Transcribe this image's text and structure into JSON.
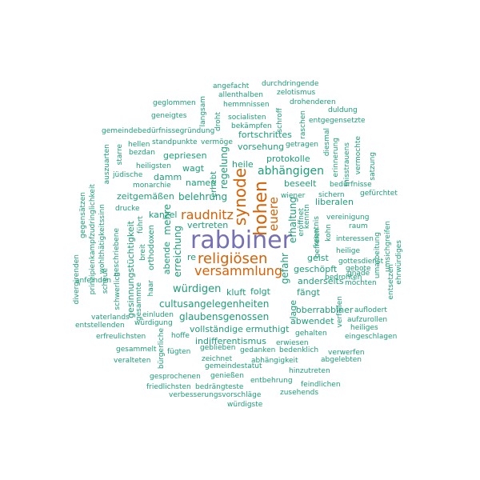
{
  "palette": {
    "purple": "#7570b3",
    "orange": "#d95f02",
    "teal": "#1b9e77"
  },
  "words": [
    {
      "text": "rabbiner",
      "color": "#7570b3",
      "size": "big"
    },
    {
      "text": "synode",
      "color": "#d95f02",
      "size": "l"
    },
    {
      "text": "hohen",
      "color": "#d95f02",
      "size": "l"
    },
    {
      "text": "religiösen",
      "color": "#d95f02",
      "size": "l"
    },
    {
      "text": "versammlung",
      "color": "#d95f02",
      "size": "m"
    },
    {
      "text": "raudnitz",
      "color": "#d95f02",
      "size": "m"
    },
    {
      "text": "euere",
      "color": "#d95f02",
      "size": "m"
    },
    {
      "text": "abhängigen",
      "color": "#1b9e77"
    },
    {
      "text": "belehrung",
      "color": "#1b9e77"
    },
    {
      "text": "würdigen",
      "color": "#1b9e77"
    },
    {
      "text": "cultusangelegenheiten",
      "color": "#1b9e77"
    },
    {
      "text": "glaubensgenossen",
      "color": "#1b9e77"
    },
    {
      "text": "erreichung",
      "color": "#1b9e77"
    },
    {
      "text": "mehre",
      "color": "#1b9e77"
    },
    {
      "text": "regelung",
      "color": "#1b9e77"
    },
    {
      "text": "gefahr",
      "color": "#1b9e77"
    },
    {
      "text": "erhaltung",
      "color": "#1b9e77"
    },
    {
      "text": "fortschrittes",
      "color": "#1b9e77"
    },
    {
      "text": "vorsehung",
      "color": "#1b9e77"
    },
    {
      "text": "protokolle",
      "color": "#1b9e77"
    },
    {
      "text": "heile",
      "color": "#1b9e77"
    },
    {
      "text": "gepriesen",
      "color": "#1b9e77"
    },
    {
      "text": "wagt",
      "color": "#1b9e77"
    },
    {
      "text": "damm",
      "color": "#1b9e77"
    },
    {
      "text": "namen",
      "color": "#1b9e77"
    },
    {
      "text": "zeitgemäßen",
      "color": "#1b9e77"
    },
    {
      "text": "beseelt",
      "color": "#1b9e77"
    },
    {
      "text": "liberalen",
      "color": "#1b9e77"
    },
    {
      "text": "kanzel",
      "color": "#1b9e77"
    },
    {
      "text": "vertreten",
      "color": "#1b9e77"
    },
    {
      "text": "geist",
      "color": "#1b9e77"
    },
    {
      "text": "anderseits",
      "color": "#1b9e77"
    },
    {
      "text": "fängt",
      "color": "#1b9e77"
    },
    {
      "text": "geschöpft",
      "color": "#1b9e77"
    },
    {
      "text": "kluft",
      "color": "#1b9e77"
    },
    {
      "text": "folgt",
      "color": "#1b9e77"
    },
    {
      "text": "abwendet",
      "color": "#1b9e77"
    },
    {
      "text": "oberrabbiner",
      "color": "#1b9e77"
    },
    {
      "text": "vollständige",
      "color": "#1b9e77"
    },
    {
      "text": "ermuthigt",
      "color": "#1b9e77"
    },
    {
      "text": "indifferentismus",
      "color": "#1b9e77"
    },
    {
      "text": "lage",
      "color": "#1b9e77"
    },
    {
      "text": "erhebt",
      "color": "#1b9e77"
    },
    {
      "text": "orthodoxen",
      "color": "#1b9e77"
    },
    {
      "text": "abende",
      "color": "#1b9e77"
    },
    {
      "text": "gesinnungstüchtigkeit",
      "color": "#1b9e77"
    },
    {
      "text": "re",
      "color": "#1b9e77"
    },
    {
      "text": "angefacht",
      "color": "#1b9e77"
    },
    {
      "text": "durchdringende",
      "color": "#1b9e77"
    },
    {
      "text": "zelotismus",
      "color": "#1b9e77"
    },
    {
      "text": "allenthalben",
      "color": "#1b9e77"
    },
    {
      "text": "hemmnissen",
      "color": "#1b9e77"
    },
    {
      "text": "drohenderen",
      "color": "#1b9e77"
    },
    {
      "text": "geglommen",
      "color": "#1b9e77"
    },
    {
      "text": "duldung",
      "color": "#1b9e77"
    },
    {
      "text": "geneigtes",
      "color": "#1b9e77"
    },
    {
      "text": "socialisten",
      "color": "#1b9e77"
    },
    {
      "text": "entgegensetzte",
      "color": "#1b9e77"
    },
    {
      "text": "bekämpfen",
      "color": "#1b9e77"
    },
    {
      "text": "gemeindebedürfnissegründung",
      "color": "#1b9e77"
    },
    {
      "text": "hellen",
      "color": "#1b9e77"
    },
    {
      "text": "standpunkte",
      "color": "#1b9e77"
    },
    {
      "text": "vermöge",
      "color": "#1b9e77"
    },
    {
      "text": "getragen",
      "color": "#1b9e77"
    },
    {
      "text": "bezdan",
      "color": "#1b9e77"
    },
    {
      "text": "heiligsten",
      "color": "#1b9e77"
    },
    {
      "text": "jüdische",
      "color": "#1b9e77"
    },
    {
      "text": "monarchie",
      "color": "#1b9e77"
    },
    {
      "text": "drucke",
      "color": "#1b9e77"
    },
    {
      "text": "bedürfnisse",
      "color": "#1b9e77"
    },
    {
      "text": "wiener",
      "color": "#1b9e77"
    },
    {
      "text": "sichern",
      "color": "#1b9e77"
    },
    {
      "text": "gefürchtet",
      "color": "#1b9e77"
    },
    {
      "text": "eröffnet",
      "color": "#1b9e77"
    },
    {
      "text": "vereinigung",
      "color": "#1b9e77"
    },
    {
      "text": "raum",
      "color": "#1b9e77"
    },
    {
      "text": "interessen",
      "color": "#1b9e77"
    },
    {
      "text": "heilige",
      "color": "#1b9e77"
    },
    {
      "text": "gottesdienst",
      "color": "#1b9e77"
    },
    {
      "text": "gebote",
      "color": "#1b9e77"
    },
    {
      "text": "gnade",
      "color": "#1b9e77"
    },
    {
      "text": "möchten",
      "color": "#1b9e77"
    },
    {
      "text": "bedrohten",
      "color": "#1b9e77"
    },
    {
      "text": "auflodert",
      "color": "#1b9e77"
    },
    {
      "text": "aufzurollen",
      "color": "#1b9e77"
    },
    {
      "text": "heiliges",
      "color": "#1b9e77"
    },
    {
      "text": "eingeschlagen",
      "color": "#1b9e77"
    },
    {
      "text": "gehalten",
      "color": "#1b9e77"
    },
    {
      "text": "erwiesen",
      "color": "#1b9e77"
    },
    {
      "text": "verwerfen",
      "color": "#1b9e77"
    },
    {
      "text": "bedenklich",
      "color": "#1b9e77"
    },
    {
      "text": "abgelebten",
      "color": "#1b9e77"
    },
    {
      "text": "gedanken",
      "color": "#1b9e77"
    },
    {
      "text": "geblieben",
      "color": "#1b9e77"
    },
    {
      "text": "abhängigkeit",
      "color": "#1b9e77"
    },
    {
      "text": "zeichnet",
      "color": "#1b9e77"
    },
    {
      "text": "gemeindestatut",
      "color": "#1b9e77"
    },
    {
      "text": "hinzutreten",
      "color": "#1b9e77"
    },
    {
      "text": "gesprochenen",
      "color": "#1b9e77"
    },
    {
      "text": "genießen",
      "color": "#1b9e77"
    },
    {
      "text": "entbehrung",
      "color": "#1b9e77"
    },
    {
      "text": "friedlichsten",
      "color": "#1b9e77"
    },
    {
      "text": "bedrängteste",
      "color": "#1b9e77"
    },
    {
      "text": "feindlichen",
      "color": "#1b9e77"
    },
    {
      "text": "verbesserungsvorschläge",
      "color": "#1b9e77"
    },
    {
      "text": "zusehends",
      "color": "#1b9e77"
    },
    {
      "text": "würdigste",
      "color": "#1b9e77"
    },
    {
      "text": "fügten",
      "color": "#1b9e77"
    },
    {
      "text": "hoffe",
      "color": "#1b9e77"
    },
    {
      "text": "einluden",
      "color": "#1b9e77"
    },
    {
      "text": "würdigung",
      "color": "#1b9e77"
    },
    {
      "text": "vaterlands",
      "color": "#1b9e77"
    },
    {
      "text": "entstellenden",
      "color": "#1b9e77"
    },
    {
      "text": "erfreulichsten",
      "color": "#1b9e77"
    },
    {
      "text": "gesammelt",
      "color": "#1b9e77"
    },
    {
      "text": "veralteten",
      "color": "#1b9e77"
    },
    {
      "text": "anfeinden",
      "color": "#1b9e77"
    },
    {
      "text": "scheue",
      "color": "#1b9e77"
    },
    {
      "text": "schwerlich",
      "color": "#1b9e77"
    },
    {
      "text": "gesammte",
      "color": "#1b9e77"
    },
    {
      "text": "haar",
      "color": "#1b9e77"
    },
    {
      "text": "breit",
      "color": "#1b9e77"
    },
    {
      "text": "führt",
      "color": "#1b9e77"
    },
    {
      "text": "divergirenden",
      "color": "#1b9e77"
    },
    {
      "text": "gegensätzen",
      "color": "#1b9e77"
    },
    {
      "text": "prinzipienkampfzudringlichkeit",
      "color": "#1b9e77"
    },
    {
      "text": "wohlthätigkeitssinn",
      "color": "#1b9e77"
    },
    {
      "text": "geschriebene",
      "color": "#1b9e77"
    },
    {
      "text": "auszuarten",
      "color": "#1b9e77"
    },
    {
      "text": "starre",
      "color": "#1b9e77"
    },
    {
      "text": "langsam",
      "color": "#1b9e77"
    },
    {
      "text": "droht",
      "color": "#1b9e77"
    },
    {
      "text": "schroff",
      "color": "#1b9e77"
    },
    {
      "text": "raschen",
      "color": "#1b9e77"
    },
    {
      "text": "diesmal",
      "color": "#1b9e77"
    },
    {
      "text": "kenntn",
      "color": "#1b9e77"
    },
    {
      "text": "erinnerung",
      "color": "#1b9e77"
    },
    {
      "text": "misstrauens",
      "color": "#1b9e77"
    },
    {
      "text": "vermochte",
      "color": "#1b9e77"
    },
    {
      "text": "satzung",
      "color": "#1b9e77"
    },
    {
      "text": "kenntnis",
      "color": "#1b9e77"
    },
    {
      "text": "befreien",
      "color": "#1b9e77"
    },
    {
      "text": "kohn",
      "color": "#1b9e77"
    },
    {
      "text": "umarbeitung",
      "color": "#1b9e77"
    },
    {
      "text": "umsichgreifen",
      "color": "#1b9e77"
    },
    {
      "text": "ehrwürdiges",
      "color": "#1b9e77"
    },
    {
      "text": "entsetzen",
      "color": "#1b9e77"
    },
    {
      "text": "verfallen",
      "color": "#1b9e77"
    },
    {
      "text": "bürgerliche",
      "color": "#1b9e77"
    }
  ]
}
